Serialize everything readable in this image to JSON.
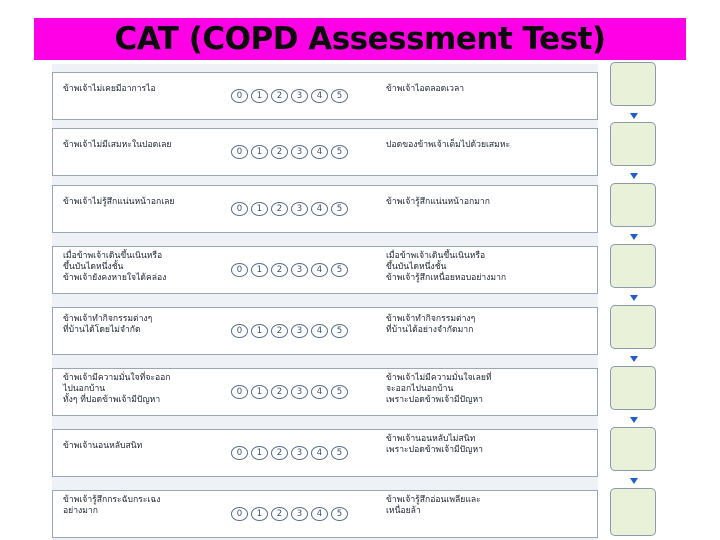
{
  "title": "CAT (COPD Assessment Test)",
  "scale_labels": [
    "0",
    "1",
    "2",
    "3",
    "4",
    "5"
  ],
  "items": [
    {
      "left": "ข้าพเจ้าไม่เคยมีอาการไอ",
      "right": "ข้าพเจ้าไอตลอดเวลา"
    },
    {
      "left": "ข้าพเจ้าไม่มีเสมหะในปอดเลย",
      "right": "ปอดของข้าพเจ้าเต็มไปด้วยเสมหะ"
    },
    {
      "left": "ข้าพเจ้าไม่รู้สึกแน่นหน้าอกเลย",
      "right": "ข้าพเจ้ารู้สึกแน่นหน้าอกมาก"
    },
    {
      "left": "เมื่อข้าพเจ้าเดินขึ้นเนินหรือ\nขึ้นบันไดหนึ่งชั้น\nข้าพเจ้ายังคงหายใจได้คล่อง",
      "right": "เมื่อข้าพเจ้าเดินขึ้นเนินหรือ\nขึ้นบันไดหนึ่งชั้น\nข้าพเจ้ารู้สึกเหนื่อยหอบอย่างมาก"
    },
    {
      "left": "ข้าพเจ้าทำกิจกรรมต่างๆ\nที่บ้านได้โดยไม่จำกัด",
      "right": "ข้าพเจ้าทำกิจกรรมต่างๆ\nที่บ้านได้อย่างจำกัดมาก"
    },
    {
      "left": "ข้าพเจ้ามีความมั่นใจที่จะออก\nไปนอกบ้าน\nทั้งๆ ที่ปอดข้าพเจ้ามีปัญหา",
      "right": "ข้าพเจ้าไม่มีความมั่นใจเลยที่\nจะออกไปนอกบ้าน\nเพราะปอดข้าพเจ้ามีปัญหา"
    },
    {
      "left": "ข้าพเจ้านอนหลับสนิท",
      "right": "ข้าพเจ้านอนหลับไม่สนิท\nเพราะปอดข้าพเจ้ามีปัญหา"
    },
    {
      "left": "ข้าพเจ้ารู้สึกกระฉับกระเฉง\nอย่างมาก",
      "right": "ข้าพเจ้ารู้สึกอ่อนเพลียและ\nเหนื่อยล้า"
    }
  ],
  "colors": {
    "title_bar": "#ff00e6",
    "score_box": "#e9f2d9",
    "arrow": "#1f5fc9"
  }
}
